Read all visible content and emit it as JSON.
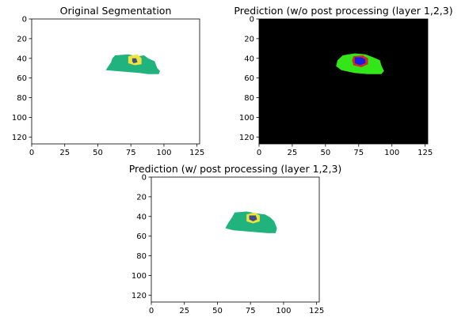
{
  "chart_data": [
    {
      "type": "heatmap",
      "title": "Original Segmentation",
      "xticks": [
        0,
        25,
        50,
        75,
        100,
        125
      ],
      "yticks": [
        0,
        20,
        40,
        60,
        80,
        100,
        120
      ],
      "xlim": [
        0,
        127
      ],
      "ylim": [
        127,
        0
      ],
      "background": "#ffffff",
      "layers": [
        {
          "label": "",
          "color": "#21b37d",
          "polygon": [
            [
              63,
              37
            ],
            [
              73,
              36
            ],
            [
              80,
              38
            ],
            [
              85,
              37
            ],
            [
              88,
              40
            ],
            [
              93,
              43
            ],
            [
              95,
              50
            ],
            [
              97,
              53
            ],
            [
              96,
              56
            ],
            [
              88,
              56
            ],
            [
              82,
              55
            ],
            [
              74,
              54
            ],
            [
              64,
              53
            ],
            [
              56,
              52
            ],
            [
              58,
              48
            ],
            [
              60,
              44
            ],
            [
              61,
              40
            ]
          ]
        },
        {
          "label": "",
          "color": "#f2e33a",
          "polygon": [
            [
              73,
              38
            ],
            [
              80,
              36
            ],
            [
              83,
              40
            ],
            [
              83,
              46
            ],
            [
              78,
              47
            ],
            [
              73,
              45
            ]
          ]
        },
        {
          "label": "",
          "color": "#3d4e8a",
          "polygon": [
            [
              76,
              40
            ],
            [
              79,
              40
            ],
            [
              80,
              44
            ],
            [
              77,
              45
            ],
            [
              76,
              43
            ]
          ]
        }
      ]
    },
    {
      "type": "heatmap",
      "title": "Prediction (w/o post processing (layer 1,2,3)",
      "xticks": [
        0,
        25,
        50,
        75,
        100,
        125
      ],
      "yticks": [
        0,
        20,
        40,
        60,
        80,
        100,
        120
      ],
      "xlim": [
        0,
        127
      ],
      "ylim": [
        127,
        0
      ],
      "background": "#000000",
      "layers": [
        {
          "label": "",
          "color": "#33e61a",
          "polygon": [
            [
              63,
              37
            ],
            [
              72,
              35
            ],
            [
              80,
              36
            ],
            [
              86,
              39
            ],
            [
              91,
              42
            ],
            [
              92,
              47
            ],
            [
              94,
              53
            ],
            [
              92,
              56
            ],
            [
              82,
              56
            ],
            [
              72,
              55
            ],
            [
              62,
              52
            ],
            [
              58,
              48
            ],
            [
              59,
              42
            ]
          ]
        },
        {
          "label": "",
          "color": "#d62a1f",
          "polygon": [
            [
              71,
              38
            ],
            [
              78,
              37
            ],
            [
              82,
              40
            ],
            [
              82,
              46
            ],
            [
              77,
              49
            ],
            [
              71,
              47
            ],
            [
              70,
              42
            ]
          ]
        },
        {
          "label": "",
          "color": "#1a1ae6",
          "polygon": [
            [
              72,
              39
            ],
            [
              77,
              39
            ],
            [
              80,
              41
            ],
            [
              80,
              45
            ],
            [
              76,
              47
            ],
            [
              72,
              45
            ]
          ]
        }
      ]
    },
    {
      "type": "heatmap",
      "title": "Prediction (w/ post processing (layer 1,2,3)",
      "xticks": [
        0,
        25,
        50,
        75,
        100,
        125
      ],
      "yticks": [
        0,
        20,
        40,
        60,
        80,
        100,
        120
      ],
      "xlim": [
        0,
        127
      ],
      "ylim": [
        127,
        0
      ],
      "background": "#ffffff",
      "layers": [
        {
          "label": "",
          "color": "#21b37d",
          "polygon": [
            [
              63,
              36
            ],
            [
              72,
              35
            ],
            [
              80,
              37
            ],
            [
              86,
              38
            ],
            [
              90,
              41
            ],
            [
              93,
              45
            ],
            [
              95,
              52
            ],
            [
              94,
              57
            ],
            [
              88,
              57
            ],
            [
              80,
              56
            ],
            [
              70,
              55
            ],
            [
              62,
              54
            ],
            [
              56,
              52
            ],
            [
              58,
              47
            ],
            [
              61,
              41
            ]
          ]
        },
        {
          "label": "",
          "color": "#f2e33a",
          "polygon": [
            [
              72,
              38
            ],
            [
              78,
              36
            ],
            [
              82,
              39
            ],
            [
              82,
              45
            ],
            [
              77,
              47
            ],
            [
              72,
              45
            ]
          ]
        },
        {
          "label": "",
          "color": "#3d4e8a",
          "polygon": [
            [
              74,
              39
            ],
            [
              79,
              39
            ],
            [
              80,
              43
            ],
            [
              77,
              45
            ],
            [
              74,
              43
            ]
          ]
        }
      ]
    }
  ]
}
